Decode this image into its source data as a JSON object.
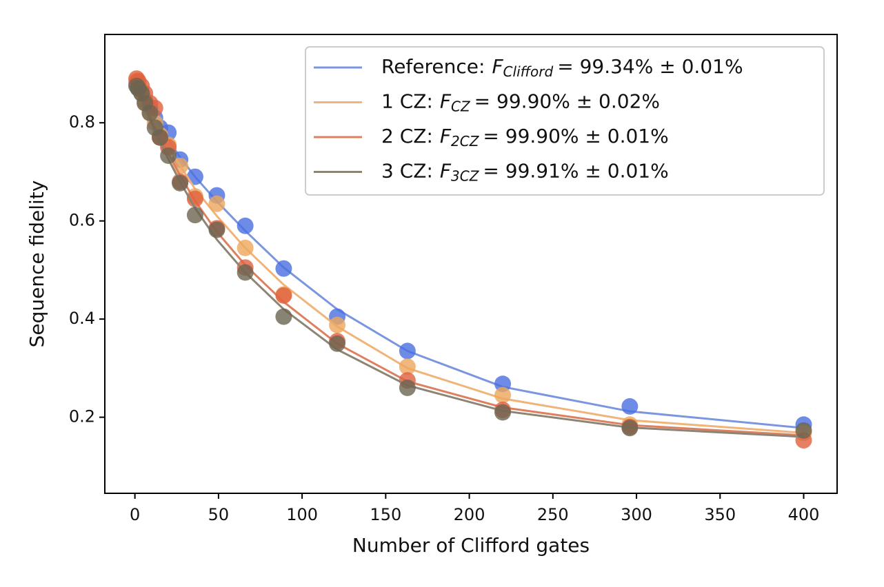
{
  "chart_data": {
    "type": "line",
    "xlabel": "Number of Clifford gates",
    "ylabel": "Sequence fidelity",
    "x": [
      1,
      2,
      4,
      6,
      9,
      12,
      15,
      20,
      27,
      36,
      49,
      66,
      89,
      121,
      163,
      220,
      296,
      400
    ],
    "xlim": [
      -18,
      420
    ],
    "xticks": [
      0,
      50,
      100,
      150,
      200,
      250,
      300,
      350,
      400
    ],
    "ylim": [
      0.045,
      0.98
    ],
    "yticks": [
      0.2,
      0.4,
      0.6,
      0.8
    ],
    "legend": "upper right",
    "series": [
      {
        "name": "Reference:",
        "symbol": "F",
        "subscript": "Clifford",
        "fidelity": "= 99.34% ± 0.01%",
        "color": "#7b96e0",
        "marker_color": "#4a6fe0",
        "values": [
          0.88,
          0.87,
          0.86,
          0.845,
          0.83,
          0.81,
          0.79,
          0.78,
          0.725,
          0.69,
          0.652,
          0.59,
          0.503,
          0.405,
          0.335,
          0.268,
          0.222,
          0.185
        ],
        "fit": [
          0.874,
          0.868,
          0.856,
          0.843,
          0.826,
          0.808,
          0.79,
          0.765,
          0.73,
          0.69,
          0.64,
          0.58,
          0.505,
          0.42,
          0.335,
          0.262,
          0.212,
          0.178
        ]
      },
      {
        "name": "1 CZ:",
        "symbol": "F",
        "subscript": "CZ",
        "fidelity": "= 99.90% ± 0.02%",
        "color": "#f0b478",
        "marker_color": "#eda65c",
        "values": [
          0.885,
          0.875,
          0.86,
          0.84,
          0.82,
          0.8,
          0.775,
          0.755,
          0.712,
          0.65,
          0.635,
          0.545,
          0.45,
          0.388,
          0.303,
          0.245,
          0.185,
          0.168
        ],
        "fit": [
          0.876,
          0.869,
          0.855,
          0.84,
          0.82,
          0.8,
          0.78,
          0.752,
          0.713,
          0.665,
          0.61,
          0.545,
          0.47,
          0.385,
          0.3,
          0.238,
          0.194,
          0.168
        ]
      },
      {
        "name": "2 CZ:",
        "symbol": "F",
        "subscript": "2CZ",
        "fidelity": "= 99.90% ± 0.01%",
        "color": "#dd8060",
        "marker_color": "#e0603e",
        "values": [
          0.89,
          0.885,
          0.875,
          0.86,
          0.84,
          0.83,
          0.77,
          0.75,
          0.68,
          0.645,
          0.585,
          0.505,
          0.448,
          0.355,
          0.275,
          0.215,
          0.18,
          0.153
        ],
        "fit": [
          0.878,
          0.87,
          0.855,
          0.838,
          0.815,
          0.792,
          0.77,
          0.737,
          0.693,
          0.641,
          0.578,
          0.51,
          0.435,
          0.35,
          0.273,
          0.22,
          0.184,
          0.163
        ]
      },
      {
        "name": "3 CZ:",
        "symbol": "F",
        "subscript": "3CZ",
        "fidelity": "= 99.91% ± 0.01%",
        "color": "#8c8474",
        "marker_color": "#6b6450",
        "values": [
          0.875,
          0.87,
          0.86,
          0.84,
          0.82,
          0.79,
          0.77,
          0.733,
          0.677,
          0.612,
          0.582,
          0.495,
          0.405,
          0.35,
          0.26,
          0.21,
          0.178,
          0.173
        ],
        "fit": [
          0.876,
          0.868,
          0.851,
          0.833,
          0.808,
          0.784,
          0.761,
          0.726,
          0.68,
          0.626,
          0.562,
          0.495,
          0.42,
          0.338,
          0.265,
          0.213,
          0.179,
          0.16
        ]
      }
    ]
  }
}
